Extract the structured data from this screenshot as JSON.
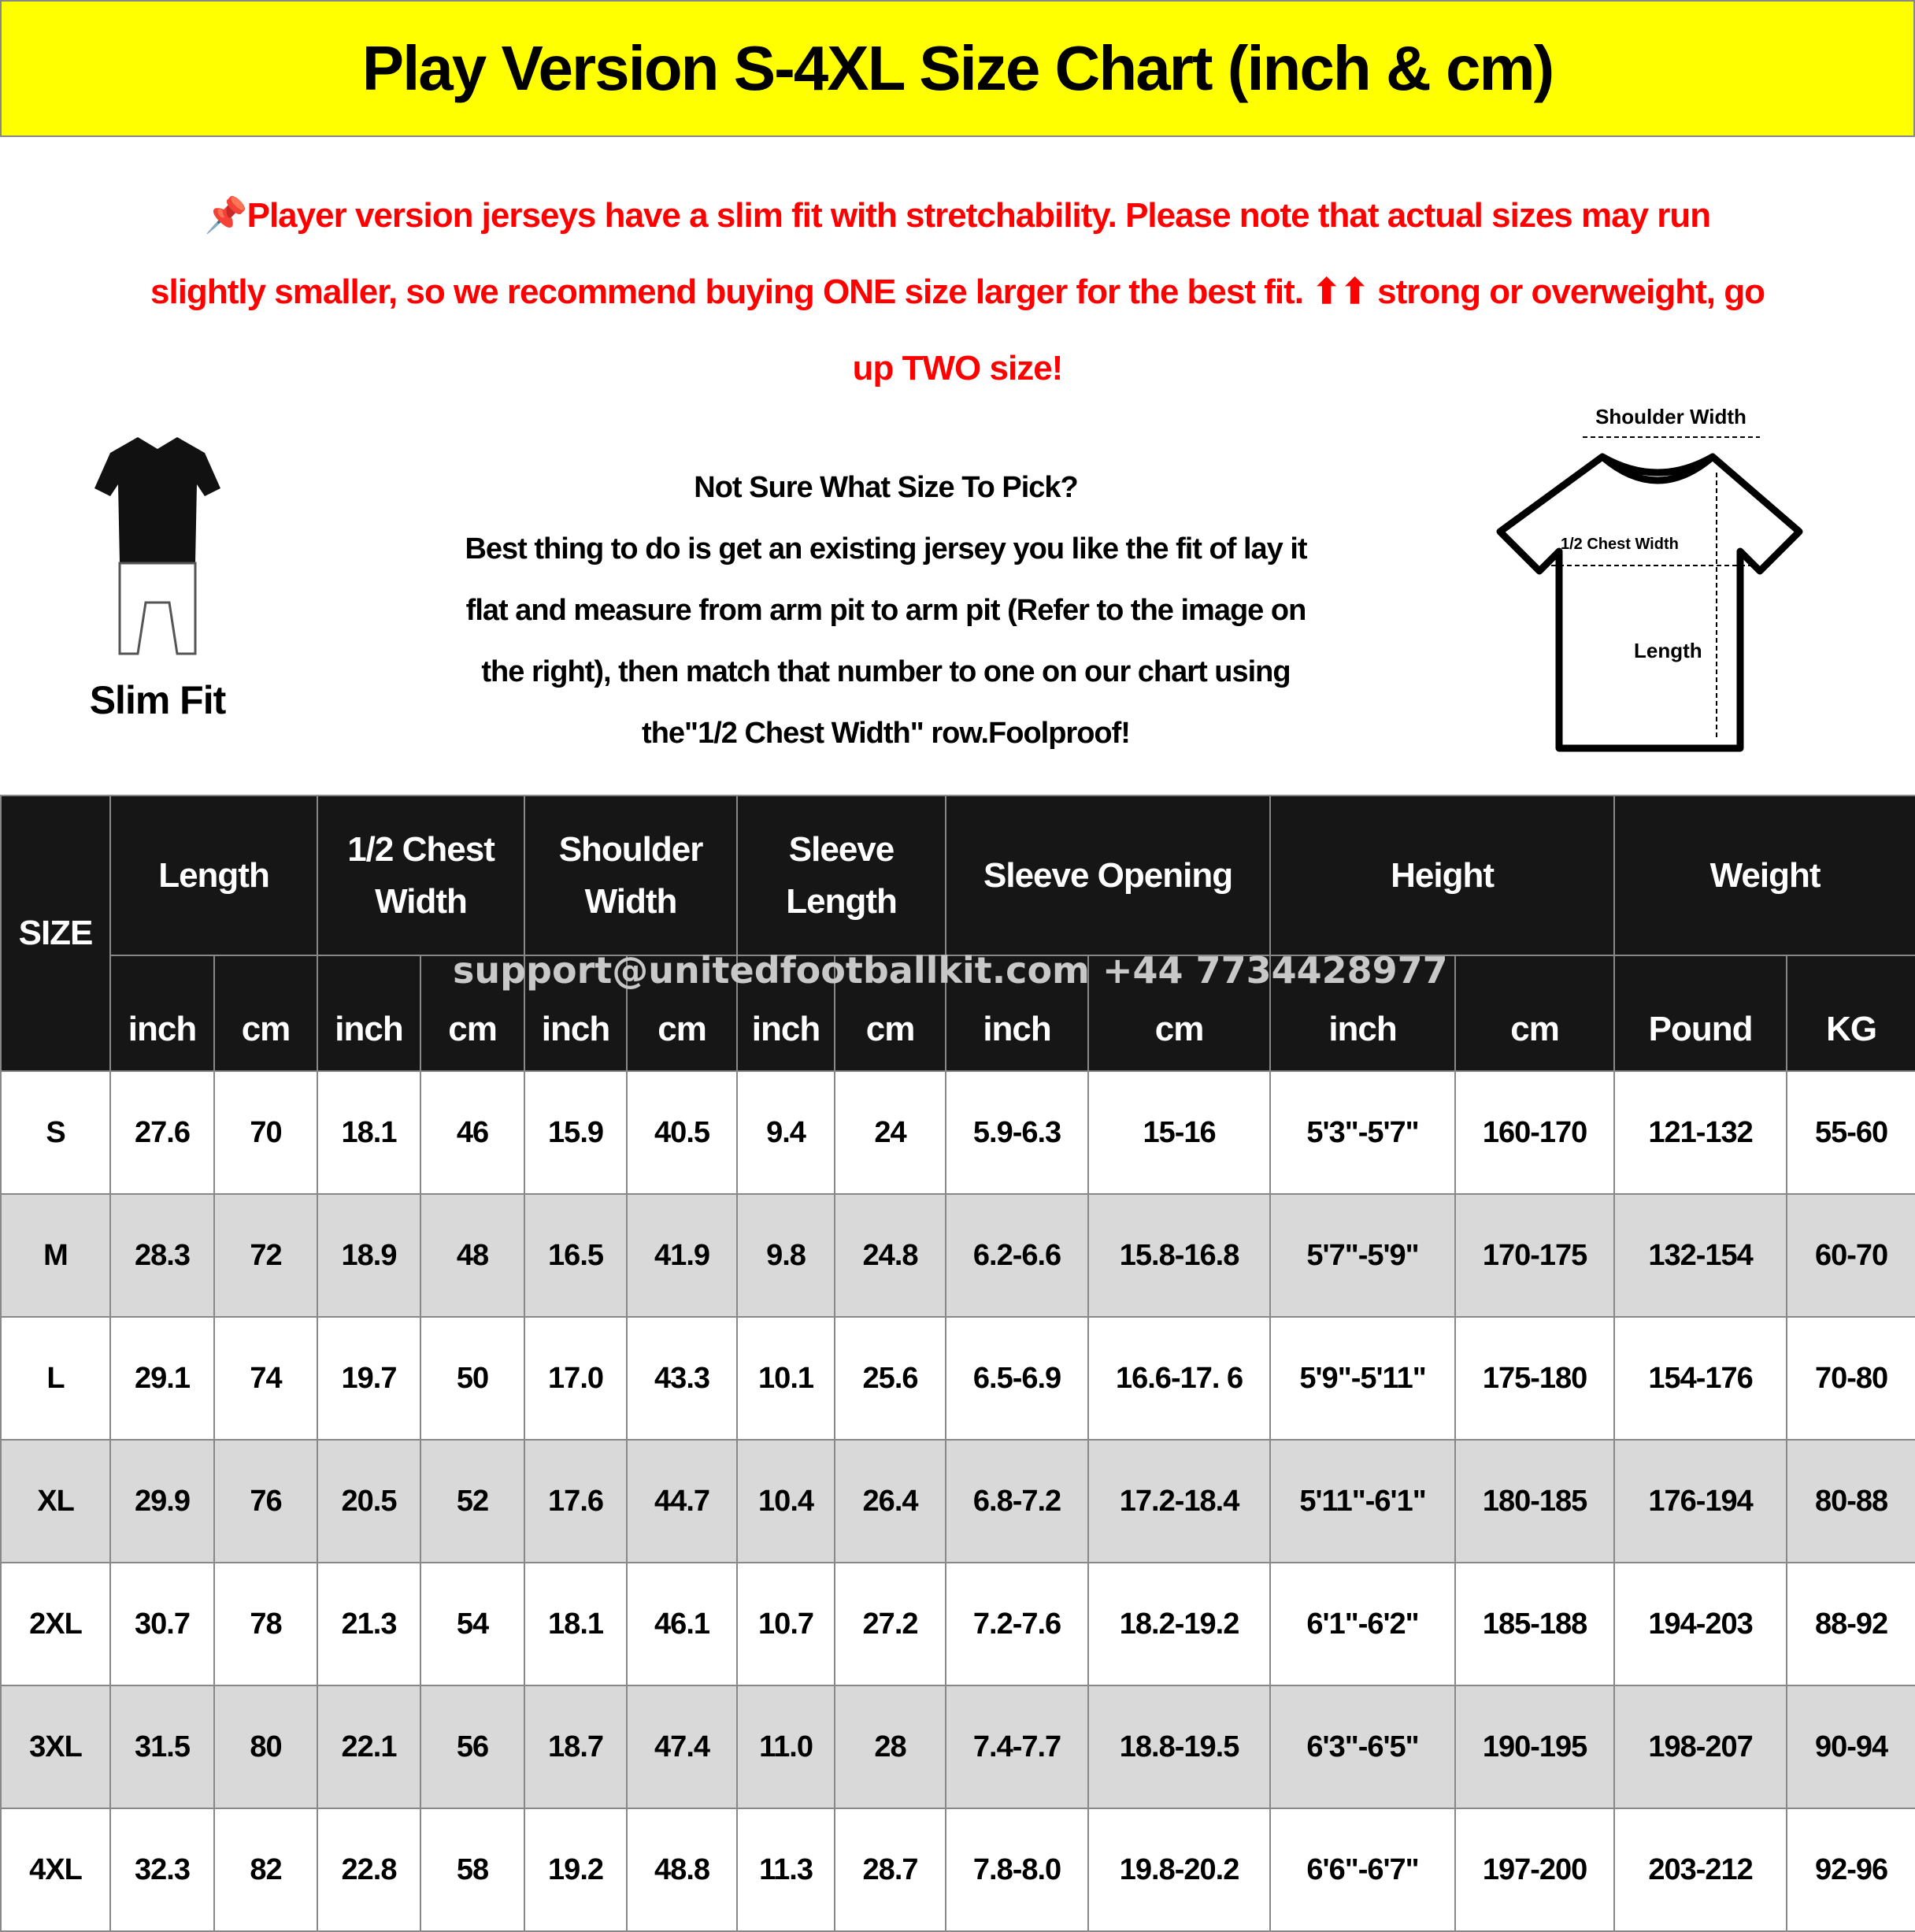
{
  "title": "Play Version S-4XL Size Chart (inch & cm)",
  "notice": {
    "icon": "pushpin-icon",
    "line1": "Player version jerseys have a slim fit with stretchability. Please note that actual sizes may run",
    "line2": "slightly smaller, so we recommend buying ONE size larger for the best fit. ⬆⬆ strong or overweight, go",
    "line3": "up TWO size!",
    "color": "#ff0000"
  },
  "slim_fit": {
    "label": "Slim Fit"
  },
  "help": {
    "heading": "Not Sure What Size To Pick?",
    "line1": "Best thing to do is get an existing jersey you like the fit of lay it",
    "line2": "flat and measure from arm pit to arm pit (Refer to the image on",
    "line3": "the right), then match that number to one on our chart using",
    "line4": "the\"1/2 Chest Width\" row.Foolproof!"
  },
  "diagram": {
    "shoulder_width": "Shoulder Width",
    "chest_width": "1/2 Chest Width",
    "length": "Length"
  },
  "table": {
    "size_header": "SIZE",
    "groups": [
      {
        "line1": "Length",
        "line2": ""
      },
      {
        "line1": "1/2 Chest",
        "line2": "Width"
      },
      {
        "line1": "Shoulder",
        "line2": "Width"
      },
      {
        "line1": "Sleeve",
        "line2": "Length"
      },
      {
        "line1": "Sleeve Opening",
        "line2": ""
      },
      {
        "line1": "Height",
        "line2": ""
      },
      {
        "line1": "Weight",
        "line2": ""
      }
    ],
    "units": [
      "inch",
      "cm",
      "inch",
      "cm",
      "inch",
      "cm",
      "inch",
      "cm",
      "inch",
      "cm",
      "inch",
      "cm",
      "Pound",
      "KG"
    ],
    "rows": [
      [
        "S",
        "27.6",
        "70",
        "18.1",
        "46",
        "15.9",
        "40.5",
        "9.4",
        "24",
        "5.9-6.3",
        "15-16",
        "5'3\"-5'7\"",
        "160-170",
        "121-132",
        "55-60"
      ],
      [
        "M",
        "28.3",
        "72",
        "18.9",
        "48",
        "16.5",
        "41.9",
        "9.8",
        "24.8",
        "6.2-6.6",
        "15.8-16.8",
        "5'7\"-5'9\"",
        "170-175",
        "132-154",
        "60-70"
      ],
      [
        "L",
        "29.1",
        "74",
        "19.7",
        "50",
        "17.0",
        "43.3",
        "10.1",
        "25.6",
        "6.5-6.9",
        "16.6-17. 6",
        "5'9\"-5'11\"",
        "175-180",
        "154-176",
        "70-80"
      ],
      [
        "XL",
        "29.9",
        "76",
        "20.5",
        "52",
        "17.6",
        "44.7",
        "10.4",
        "26.4",
        "6.8-7.2",
        "17.2-18.4",
        "5'11\"-6'1\"",
        "180-185",
        "176-194",
        "80-88"
      ],
      [
        "2XL",
        "30.7",
        "78",
        "21.3",
        "54",
        "18.1",
        "46.1",
        "10.7",
        "27.2",
        "7.2-7.6",
        "18.2-19.2",
        "6'1\"-6'2\"",
        "185-188",
        "194-203",
        "88-92"
      ],
      [
        "3XL",
        "31.5",
        "80",
        "22.1",
        "56",
        "18.7",
        "47.4",
        "11.0",
        "28",
        "7.4-7.7",
        "18.8-19.5",
        "6'3\"-6'5\"",
        "190-195",
        "198-207",
        "90-94"
      ],
      [
        "4XL",
        "32.3",
        "82",
        "22.8",
        "58",
        "19.2",
        "48.8",
        "11.3",
        "28.7",
        "7.8-8.0",
        "19.8-20.2",
        "6'6\"-6'7\"",
        "197-200",
        "203-212",
        "92-96"
      ]
    ]
  },
  "watermark": "support@unitedfootballkit.com  +44 7734428977",
  "colors": {
    "title_bg": "#ffff00",
    "header_bg": "#161616",
    "alt_row": "#d9d9d9"
  }
}
